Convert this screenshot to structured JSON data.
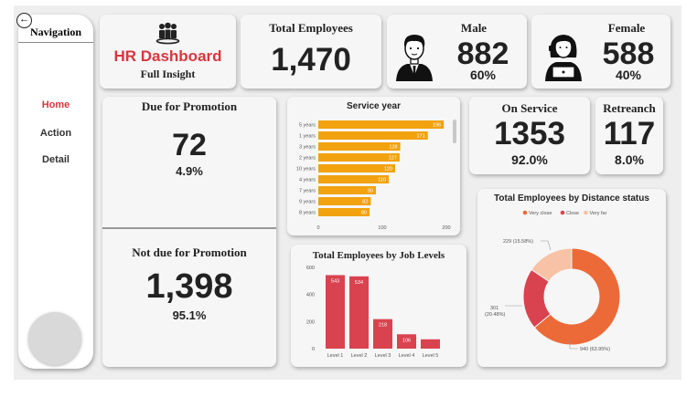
{
  "nav": {
    "title": "Navigation",
    "back_symbol": "←",
    "items": [
      "Home",
      "Action",
      "Detail"
    ],
    "active": "Home"
  },
  "header": {
    "title": "HR Dashboard",
    "subtitle": "Full Insight"
  },
  "total_employees": {
    "label": "Total Employees",
    "value": "1,470"
  },
  "male": {
    "label": "Male",
    "value": "882",
    "pct": "60%"
  },
  "female": {
    "label": "Female",
    "value": "588",
    "pct": "40%"
  },
  "due_promotion": {
    "label": "Due for Promotion",
    "value": "72",
    "pct": "4.9%"
  },
  "not_due_promotion": {
    "label": "Not due for Promotion",
    "value": "1,398",
    "pct": "95.1%"
  },
  "on_service": {
    "label": "On Service",
    "value": "1353",
    "pct": "92.0%"
  },
  "retrench": {
    "label": "Retreanch",
    "value": "117",
    "pct": "8.0%"
  },
  "colors": {
    "accent_pink": "#e0787f",
    "title_red": "#d9363e",
    "bar_orange": "#f2a20f",
    "bar_red": "#d9434f",
    "very_close": "#ec6a37",
    "close": "#d9434f",
    "very_far": "#f7c2a5"
  },
  "chart_data": [
    {
      "type": "bar",
      "orientation": "horizontal",
      "title": "Service year",
      "categories": [
        "5 years",
        "1 years",
        "3 years",
        "2 years",
        "10 years",
        "4 years",
        "7 years",
        "9 years",
        "8 years"
      ],
      "values": [
        196,
        171,
        128,
        127,
        120,
        110,
        90,
        82,
        80
      ],
      "xlim": [
        0,
        200
      ],
      "xticks": [
        "0",
        "100",
        "200"
      ]
    },
    {
      "type": "bar",
      "title": "Total Employees by Job Levels",
      "categories": [
        "Level 1",
        "Level 2",
        "Level 3",
        "Level 4",
        "Level 5"
      ],
      "values": [
        543,
        534,
        218,
        106,
        69
      ],
      "value_labels": [
        "543",
        "534",
        "218",
        "106",
        ""
      ],
      "ylim": [
        0,
        600
      ],
      "yticks": [
        "0",
        "200",
        "400",
        "600"
      ]
    },
    {
      "type": "pie",
      "title": "Total Employees by Distance status",
      "legend_position": "top",
      "series": [
        {
          "name": "Very close",
          "value": 940,
          "label": "940 (63.95%)"
        },
        {
          "name": "Close",
          "value": 301,
          "label": "301 (20.48%)"
        },
        {
          "name": "Very far",
          "value": 229,
          "label": "229 (15.58%)"
        }
      ]
    }
  ]
}
